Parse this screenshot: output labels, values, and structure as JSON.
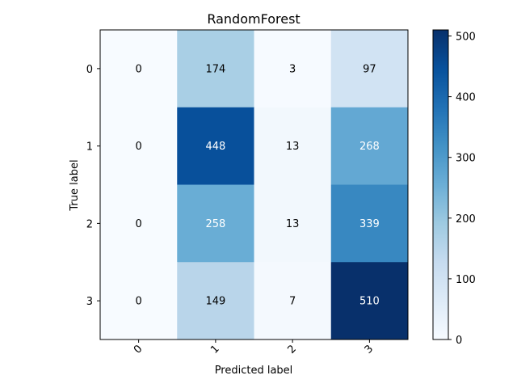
{
  "chart_data": {
    "type": "heatmap",
    "title": "RandomForest",
    "xlabel": "Predicted label",
    "ylabel": "True label",
    "x_categories": [
      "0",
      "1",
      "2",
      "3"
    ],
    "y_categories": [
      "0",
      "1",
      "2",
      "3"
    ],
    "matrix": [
      [
        0,
        174,
        3,
        97
      ],
      [
        0,
        448,
        13,
        268
      ],
      [
        0,
        258,
        13,
        339
      ],
      [
        0,
        149,
        7,
        510
      ]
    ],
    "colormap": "Blues",
    "color_range": [
      0,
      510
    ],
    "colorbar_ticks": [
      "0",
      "100",
      "200",
      "300",
      "400",
      "500"
    ],
    "colorbar_tick_values": [
      0,
      100,
      200,
      300,
      400,
      500
    ],
    "x_tick_rotation_deg": 45,
    "grid": false,
    "colors": {
      "low": "#f7fbff",
      "high": "#08306b",
      "text_dark": "#000000",
      "text_light": "#ffffff"
    }
  }
}
